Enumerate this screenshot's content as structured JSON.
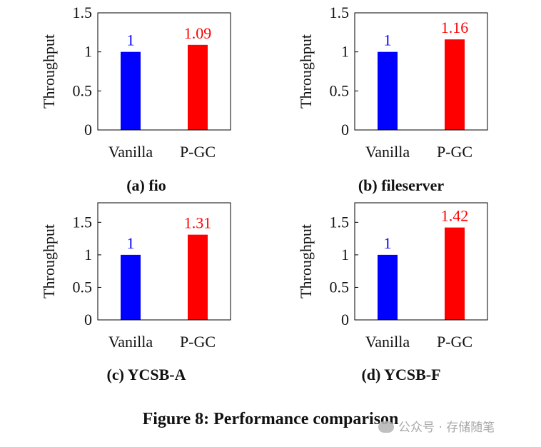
{
  "colors": {
    "vanilla": "#0000ff",
    "pgc": "#ff0000",
    "axis": "#000000"
  },
  "chart_data": [
    {
      "type": "bar",
      "caption": "(a) fio",
      "categories": [
        "Vanilla",
        "P-GC"
      ],
      "values": [
        1,
        1.09
      ],
      "labels": [
        "1",
        "1.09"
      ],
      "ylabel": "Throughput",
      "ylim": [
        0,
        1.5
      ],
      "yticks": [
        0,
        0.5,
        1,
        1.5
      ],
      "ytick_labels": [
        "0",
        "0.5",
        "1",
        "1.5"
      ]
    },
    {
      "type": "bar",
      "caption": "(b) fileserver",
      "categories": [
        "Vanilla",
        "P-GC"
      ],
      "values": [
        1,
        1.16
      ],
      "labels": [
        "1",
        "1.16"
      ],
      "ylabel": "Throughput",
      "ylim": [
        0,
        1.5
      ],
      "yticks": [
        0,
        0.5,
        1,
        1.5
      ],
      "ytick_labels": [
        "0",
        "0.5",
        "1",
        "1.5"
      ]
    },
    {
      "type": "bar",
      "caption": "(c) YCSB-A",
      "categories": [
        "Vanilla",
        "P-GC"
      ],
      "values": [
        1,
        1.31
      ],
      "labels": [
        "1",
        "1.31"
      ],
      "ylabel": "Throughput",
      "ylim": [
        0,
        1.8
      ],
      "yticks": [
        0,
        0.5,
        1,
        1.5
      ],
      "ytick_labels": [
        "0",
        "0.5",
        "1",
        "1.5"
      ]
    },
    {
      "type": "bar",
      "caption": "(d) YCSB-F",
      "categories": [
        "Vanilla",
        "P-GC"
      ],
      "values": [
        1,
        1.42
      ],
      "labels": [
        "1",
        "1.42"
      ],
      "ylabel": "Throughput",
      "ylim": [
        0,
        1.8
      ],
      "yticks": [
        0,
        0.5,
        1,
        1.5
      ],
      "ytick_labels": [
        "0",
        "0.5",
        "1",
        "1.5"
      ]
    }
  ],
  "figure": {
    "caption": "Figure 8: Performance comparison"
  },
  "watermark": {
    "text": "公众号 · 存储随笔"
  }
}
